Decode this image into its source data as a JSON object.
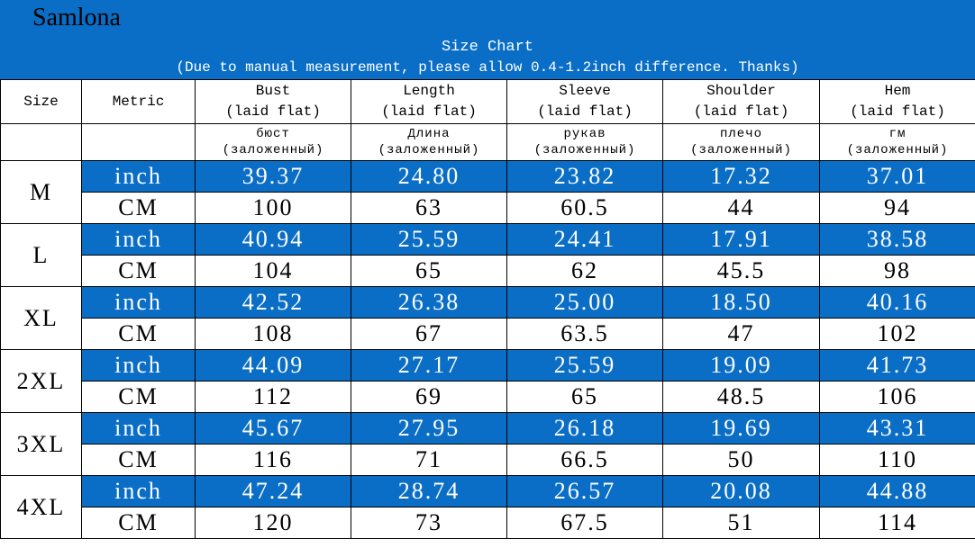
{
  "header": {
    "brand": "Samlona",
    "title": "Size Chart",
    "subtitle": "(Due to manual measurement, please allow 0.4-1.2inch difference. Thanks)"
  },
  "table": {
    "columns": [
      "Size",
      "Metric",
      "Bust",
      "Length",
      "Sleeve",
      "Shoulder",
      "Hem"
    ],
    "column_notes": [
      "(laid flat)",
      "(laid flat)",
      "(laid flat)",
      "(laid flat)",
      "(laid flat)"
    ],
    "translations": [
      "бюст",
      "Длина",
      "рукав",
      "плечо",
      "гм"
    ],
    "translation_notes": [
      "(заложенный)",
      "(заложенный)",
      "(заложенный)",
      "(заложенный)",
      "(заложенный)"
    ],
    "rows": [
      {
        "size": "M",
        "inch_label": "inch",
        "inch": [
          "39.37",
          "24.80",
          "23.82",
          "17.32",
          "37.01"
        ],
        "cm_label": "CM",
        "cm": [
          "100",
          "63",
          "60.5",
          "44",
          "94"
        ]
      },
      {
        "size": "L",
        "inch_label": "inch",
        "inch": [
          "40.94",
          "25.59",
          "24.41",
          "17.91",
          "38.58"
        ],
        "cm_label": "CM",
        "cm": [
          "104",
          "65",
          "62",
          "45.5",
          "98"
        ]
      },
      {
        "size": "XL",
        "inch_label": "inch",
        "inch": [
          "42.52",
          "26.38",
          "25.00",
          "18.50",
          "40.16"
        ],
        "cm_label": "CM",
        "cm": [
          "108",
          "67",
          "63.5",
          "47",
          "102"
        ]
      },
      {
        "size": "2XL",
        "inch_label": "inch",
        "inch": [
          "44.09",
          "27.17",
          "25.59",
          "19.09",
          "41.73"
        ],
        "cm_label": "CM",
        "cm": [
          "112",
          "69",
          "65",
          "48.5",
          "106"
        ]
      },
      {
        "size": "3XL",
        "inch_label": "inch",
        "inch": [
          "45.67",
          "27.95",
          "26.18",
          "19.69",
          "43.31"
        ],
        "cm_label": "CM",
        "cm": [
          "116",
          "71",
          "66.5",
          "50",
          "110"
        ]
      },
      {
        "size": "4XL",
        "inch_label": "inch",
        "inch": [
          "47.24",
          "28.74",
          "26.57",
          "20.08",
          "44.88"
        ],
        "cm_label": "CM",
        "cm": [
          "120",
          "73",
          "67.5",
          "51",
          "114"
        ]
      }
    ]
  }
}
